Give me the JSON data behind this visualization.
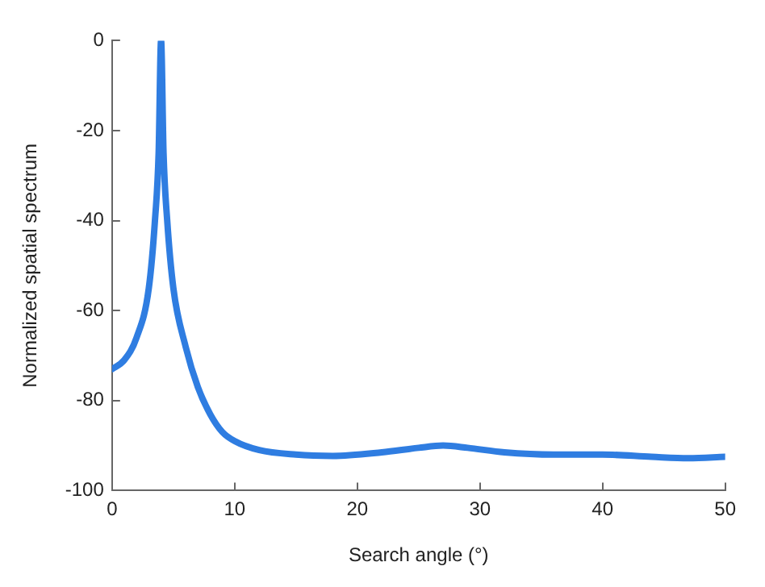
{
  "chart_data": {
    "type": "line",
    "xlabel": "Search angle (°)",
    "ylabel": "Normalized spatial spectrum",
    "xlim": [
      0,
      50
    ],
    "xticks": [
      0,
      10,
      20,
      30,
      40,
      50
    ],
    "ylim": [
      -100,
      0
    ],
    "yticks": [
      -100,
      -80,
      -60,
      -40,
      -20,
      0
    ],
    "grid": false,
    "legend": false,
    "marker": "none",
    "line_style": "solid",
    "series": [
      {
        "color": "#2f7de1",
        "x": [
          0,
          1,
          2,
          3,
          3.5,
          3.8,
          4,
          4.2,
          4.5,
          5,
          6,
          7,
          8,
          9,
          10,
          12,
          15,
          18,
          22,
          25,
          27,
          29,
          32,
          36,
          40,
          44,
          47,
          50
        ],
        "values": [
          -73,
          -71,
          -66,
          -55,
          -40,
          -25,
          0,
          -25,
          -40,
          -55,
          -68,
          -77,
          -83,
          -87,
          -89,
          -91,
          -92,
          -92.3,
          -91.5,
          -90.5,
          -90,
          -90.5,
          -91.5,
          -92,
          -92,
          -92.5,
          -92.8,
          -92.5
        ]
      }
    ]
  }
}
